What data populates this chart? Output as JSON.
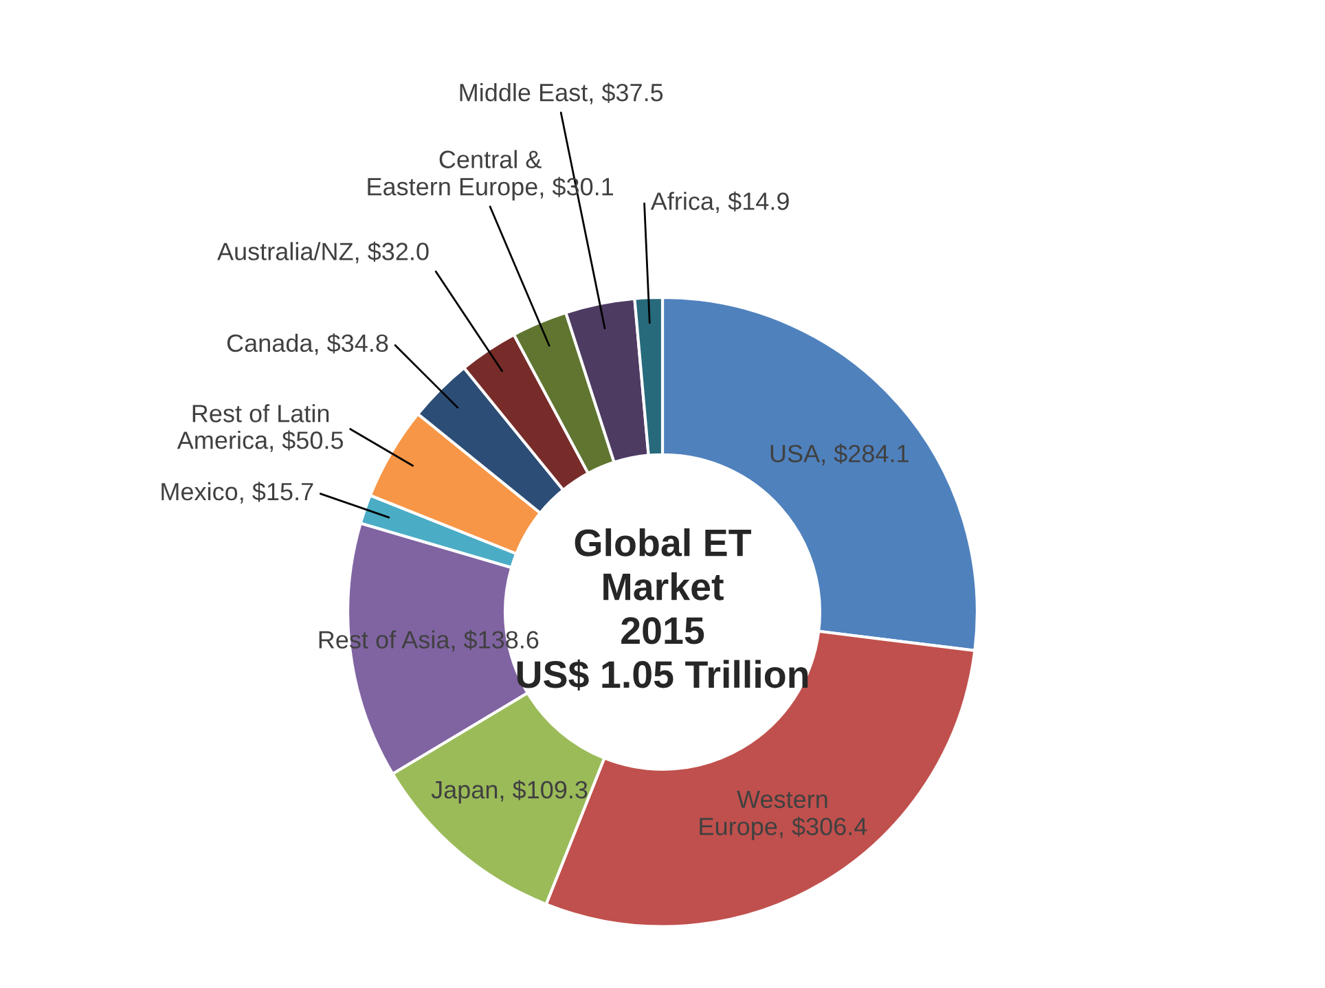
{
  "chart_data": {
    "type": "donut",
    "title": "Global ET\nMarket\n2015\nUS$ 1.05 Trillion",
    "categories": [
      "USA",
      "Western\nEurope",
      "Japan",
      "Rest of Asia",
      "Mexico",
      "Rest of Latin\nAmerica",
      "Canada",
      "Australia/NZ",
      "Central &\nEastern Europe",
      "Middle East",
      "Africa"
    ],
    "values": [
      284.1,
      306.4,
      109.3,
      138.6,
      15.7,
      50.5,
      34.8,
      32.0,
      30.1,
      37.5,
      14.9
    ],
    "value_labels": [
      "$284.1",
      "$306.4",
      "$109.3",
      "$138.6",
      "$15.7",
      "$50.5",
      "$34.8",
      "$32.0",
      "$30.1",
      "$37.5",
      "$14.9"
    ],
    "colors": [
      "#4f81bd",
      "#c0504d",
      "#9bbb59",
      "#8064a2",
      "#4bacc6",
      "#f79646",
      "#2c4d75",
      "#772c2a",
      "#5f7530",
      "#4d3b62",
      "#276a7c"
    ],
    "legend": false
  }
}
